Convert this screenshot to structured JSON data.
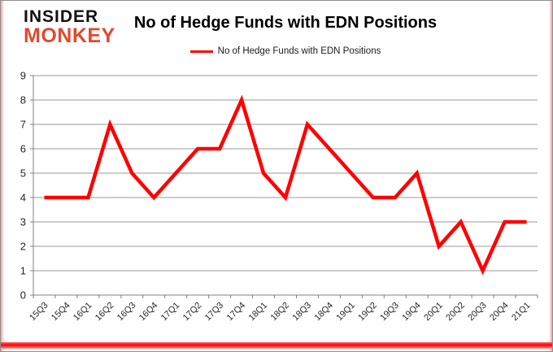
{
  "logo": {
    "line1": "INSIDER",
    "line2": "MONKEY"
  },
  "header": {
    "title": "No of Hedge Funds with EDN Positions"
  },
  "legend": {
    "label": "No of Hedge Funds with EDN Positions"
  },
  "colors": {
    "line_red": "#FF0000",
    "logo_black": "#121212",
    "logo_red": "#E2492F",
    "gridline_gray": "#9A9A9A",
    "axis_gray": "#808080",
    "axis_text": "#262626",
    "frame_border": "#8F8F8F"
  },
  "chart_data": {
    "type": "line",
    "title": "No of Hedge Funds with EDN Positions",
    "categories": [
      "15Q3",
      "15Q4",
      "16Q1",
      "16Q2",
      "16Q3",
      "16Q4",
      "17Q1",
      "17Q2",
      "17Q3",
      "17Q4",
      "18Q1",
      "18Q2",
      "18Q3",
      "18Q4",
      "19Q1",
      "19Q2",
      "19Q3",
      "19Q4",
      "20Q1",
      "20Q2",
      "20Q3",
      "20Q4",
      "21Q1"
    ],
    "series": [
      {
        "name": "No of Hedge Funds with EDN Positions",
        "color": "#FF0000",
        "values": [
          4,
          4,
          4,
          7,
          5,
          4,
          5,
          6,
          6,
          8,
          5,
          4,
          7,
          6,
          5,
          4,
          4,
          5,
          2,
          3,
          1,
          3,
          3
        ]
      }
    ],
    "xlabel": "",
    "ylabel": "",
    "ylim": [
      0,
      9
    ],
    "ytick_step": 1,
    "grid": true,
    "legend_position": "top",
    "x_tick_rotation": -45
  }
}
